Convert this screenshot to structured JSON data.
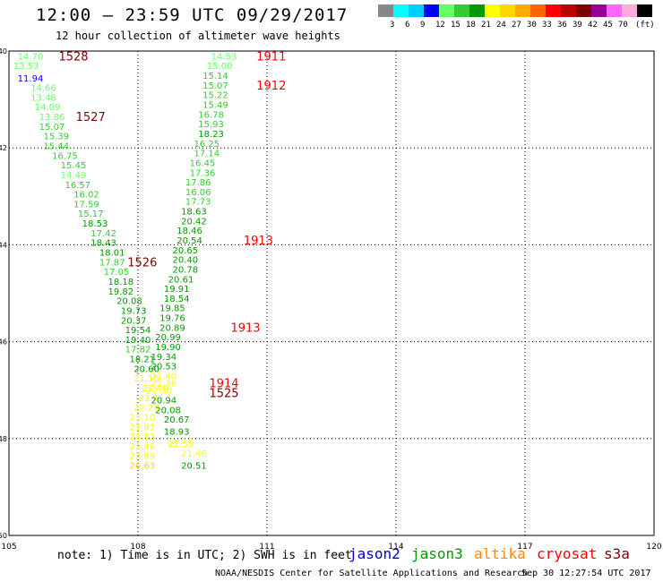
{
  "header": {
    "title": "12:00 — 23:59 UTC 09/29/2017",
    "subtitle": "12 hour collection of altimeter wave heights"
  },
  "legend": {
    "unit": "(ft)",
    "colors": [
      "#888888",
      "#00ffff",
      "#00ccff",
      "#0000ff",
      "#66ff66",
      "#33cc33",
      "#009900",
      "#ffff00",
      "#ffd700",
      "#ffaa00",
      "#ff6600",
      "#ff0000",
      "#bb0000",
      "#7f0000",
      "#990099",
      "#ff66ff",
      "#ffaadd",
      "#000000"
    ],
    "labels": [
      "3",
      "6",
      "9",
      "12",
      "15",
      "18",
      "21",
      "24",
      "27",
      "30",
      "33",
      "36",
      "39",
      "42",
      "45",
      "70"
    ]
  },
  "map": {
    "lon_ticks": [
      "105",
      "108",
      "111",
      "114",
      "117",
      "120"
    ],
    "lat_ticks": [
      "-40",
      "-42",
      "-44",
      "-46",
      "-48",
      "-50"
    ],
    "lon_range": [
      105,
      120
    ],
    "lat_range": [
      -50,
      -40
    ]
  },
  "observations": [
    {
      "v": "14.70",
      "c": "#66ff66",
      "lon": 105.5,
      "lat": -40.1
    },
    {
      "v": "13.53",
      "c": "#66ff66",
      "lon": 105.4,
      "lat": -40.3
    },
    {
      "v": "11.94",
      "c": "#0000ff",
      "lon": 105.5,
      "lat": -40.55
    },
    {
      "v": "14.66",
      "c": "#66ff66",
      "lon": 105.8,
      "lat": -40.75
    },
    {
      "v": "13.48",
      "c": "#66ff66",
      "lon": 105.8,
      "lat": -40.95
    },
    {
      "v": "14.09",
      "c": "#66ff66",
      "lon": 105.9,
      "lat": -41.15
    },
    {
      "v": "13.86",
      "c": "#66ff66",
      "lon": 106.0,
      "lat": -41.35
    },
    {
      "v": "15.07",
      "c": "#33cc33",
      "lon": 106.0,
      "lat": -41.55
    },
    {
      "v": "15.39",
      "c": "#33cc33",
      "lon": 106.1,
      "lat": -41.75
    },
    {
      "v": "15.44",
      "c": "#33cc33",
      "lon": 106.1,
      "lat": -41.95
    },
    {
      "v": "16.75",
      "c": "#33cc33",
      "lon": 106.3,
      "lat": -42.15
    },
    {
      "v": "15.45",
      "c": "#33cc33",
      "lon": 106.5,
      "lat": -42.35
    },
    {
      "v": "14.49",
      "c": "#66ff66",
      "lon": 106.5,
      "lat": -42.55
    },
    {
      "v": "16.57",
      "c": "#33cc33",
      "lon": 106.6,
      "lat": -42.75
    },
    {
      "v": "16.02",
      "c": "#33cc33",
      "lon": 106.8,
      "lat": -42.95
    },
    {
      "v": "17.59",
      "c": "#33cc33",
      "lon": 106.8,
      "lat": -43.15
    },
    {
      "v": "15.17",
      "c": "#33cc33",
      "lon": 106.9,
      "lat": -43.35
    },
    {
      "v": "18.53",
      "c": "#009900",
      "lon": 107.0,
      "lat": -43.55
    },
    {
      "v": "17.42",
      "c": "#33cc33",
      "lon": 107.2,
      "lat": -43.75
    },
    {
      "v": "18.43",
      "c": "#009900",
      "lon": 107.2,
      "lat": -43.95
    },
    {
      "v": "18.01",
      "c": "#009900",
      "lon": 107.4,
      "lat": -44.15
    },
    {
      "v": "17.87",
      "c": "#33cc33",
      "lon": 107.4,
      "lat": -44.35
    },
    {
      "v": "17.05",
      "c": "#33cc33",
      "lon": 107.5,
      "lat": -44.55
    },
    {
      "v": "18.18",
      "c": "#009900",
      "lon": 107.6,
      "lat": -44.75
    },
    {
      "v": "19.82",
      "c": "#009900",
      "lon": 107.6,
      "lat": -44.95
    },
    {
      "v": "20.08",
      "c": "#009900",
      "lon": 107.8,
      "lat": -45.15
    },
    {
      "v": "19.73",
      "c": "#009900",
      "lon": 107.9,
      "lat": -45.35
    },
    {
      "v": "20.37",
      "c": "#009900",
      "lon": 107.9,
      "lat": -45.55
    },
    {
      "v": "19.54",
      "c": "#009900",
      "lon": 108.0,
      "lat": -45.75
    },
    {
      "v": "19.40",
      "c": "#009900",
      "lon": 108.0,
      "lat": -45.95
    },
    {
      "v": "17.82",
      "c": "#33cc33",
      "lon": 108.0,
      "lat": -46.15
    },
    {
      "v": "18.21",
      "c": "#009900",
      "lon": 108.1,
      "lat": -46.35
    },
    {
      "v": "20.60",
      "c": "#009900",
      "lon": 108.2,
      "lat": -46.55
    },
    {
      "v": "21.15",
      "c": "#ffff00",
      "lon": 108.2,
      "lat": -46.75
    },
    {
      "v": "22.40",
      "c": "#ffff00",
      "lon": 108.4,
      "lat": -46.95
    },
    {
      "v": "23.01",
      "c": "#ffff00",
      "lon": 108.3,
      "lat": -47.15
    },
    {
      "v": "22.28",
      "c": "#ffff00",
      "lon": 108.2,
      "lat": -47.35
    },
    {
      "v": "23.10",
      "c": "#ffff00",
      "lon": 108.1,
      "lat": -47.55
    },
    {
      "v": "21.91",
      "c": "#ffff00",
      "lon": 108.1,
      "lat": -47.75
    },
    {
      "v": "21.82",
      "c": "#ffff00",
      "lon": 108.1,
      "lat": -47.95
    },
    {
      "v": "22.46",
      "c": "#ffff00",
      "lon": 108.1,
      "lat": -48.15
    },
    {
      "v": "23.89",
      "c": "#ffff00",
      "lon": 108.1,
      "lat": -48.35
    },
    {
      "v": "26.63",
      "c": "#ffd700",
      "lon": 108.1,
      "lat": -48.55
    },
    {
      "v": "14.53",
      "c": "#66ff66",
      "lon": 110.0,
      "lat": -40.1
    },
    {
      "v": "15.00",
      "c": "#66ff66",
      "lon": 109.9,
      "lat": -40.3
    },
    {
      "v": "15.14",
      "c": "#33cc33",
      "lon": 109.8,
      "lat": -40.5
    },
    {
      "v": "15.07",
      "c": "#33cc33",
      "lon": 109.8,
      "lat": -40.7
    },
    {
      "v": "15.22",
      "c": "#33cc33",
      "lon": 109.8,
      "lat": -40.9
    },
    {
      "v": "15.49",
      "c": "#33cc33",
      "lon": 109.8,
      "lat": -41.1
    },
    {
      "v": "16.78",
      "c": "#33cc33",
      "lon": 109.7,
      "lat": -41.3
    },
    {
      "v": "15.93",
      "c": "#33cc33",
      "lon": 109.7,
      "lat": -41.5
    },
    {
      "v": "18.23",
      "c": "#009900",
      "lon": 109.7,
      "lat": -41.7
    },
    {
      "v": "16.25",
      "c": "#33cc33",
      "lon": 109.6,
      "lat": -41.9
    },
    {
      "v": "17.14",
      "c": "#33cc33",
      "lon": 109.6,
      "lat": -42.1
    },
    {
      "v": "16.45",
      "c": "#33cc33",
      "lon": 109.5,
      "lat": -42.3
    },
    {
      "v": "17.36",
      "c": "#33cc33",
      "lon": 109.5,
      "lat": -42.5
    },
    {
      "v": "17.86",
      "c": "#33cc33",
      "lon": 109.4,
      "lat": -42.7
    },
    {
      "v": "16.06",
      "c": "#33cc33",
      "lon": 109.4,
      "lat": -42.9
    },
    {
      "v": "17.73",
      "c": "#33cc33",
      "lon": 109.4,
      "lat": -43.1
    },
    {
      "v": "18.63",
      "c": "#009900",
      "lon": 109.3,
      "lat": -43.3
    },
    {
      "v": "20.42",
      "c": "#009900",
      "lon": 109.3,
      "lat": -43.5
    },
    {
      "v": "18.46",
      "c": "#009900",
      "lon": 109.2,
      "lat": -43.7
    },
    {
      "v": "20.54",
      "c": "#009900",
      "lon": 109.2,
      "lat": -43.9
    },
    {
      "v": "20.65",
      "c": "#009900",
      "lon": 109.1,
      "lat": -44.1
    },
    {
      "v": "20.40",
      "c": "#009900",
      "lon": 109.1,
      "lat": -44.3
    },
    {
      "v": "20.78",
      "c": "#009900",
      "lon": 109.1,
      "lat": -44.5
    },
    {
      "v": "20.61",
      "c": "#009900",
      "lon": 109.0,
      "lat": -44.7
    },
    {
      "v": "19.91",
      "c": "#009900",
      "lon": 108.9,
      "lat": -44.9
    },
    {
      "v": "18.54",
      "c": "#009900",
      "lon": 108.9,
      "lat": -45.1
    },
    {
      "v": "19.85",
      "c": "#009900",
      "lon": 108.8,
      "lat": -45.3
    },
    {
      "v": "19.76",
      "c": "#009900",
      "lon": 108.8,
      "lat": -45.5
    },
    {
      "v": "20.89",
      "c": "#009900",
      "lon": 108.8,
      "lat": -45.7
    },
    {
      "v": "20.99",
      "c": "#009900",
      "lon": 108.7,
      "lat": -45.9
    },
    {
      "v": "19.90",
      "c": "#009900",
      "lon": 108.7,
      "lat": -46.1
    },
    {
      "v": "19.34",
      "c": "#009900",
      "lon": 108.6,
      "lat": -46.3
    },
    {
      "v": "20.53",
      "c": "#009900",
      "lon": 108.6,
      "lat": -46.5
    },
    {
      "v": "21.40",
      "c": "#ffff00",
      "lon": 108.6,
      "lat": -46.7
    },
    {
      "v": "22.36",
      "c": "#ffff00",
      "lon": 108.6,
      "lat": -46.85
    },
    {
      "v": "22.30",
      "c": "#ffff00",
      "lon": 108.5,
      "lat": -47.0
    },
    {
      "v": "20.94",
      "c": "#009900",
      "lon": 108.6,
      "lat": -47.2
    },
    {
      "v": "20.08",
      "c": "#009900",
      "lon": 108.7,
      "lat": -47.4
    },
    {
      "v": "20.67",
      "c": "#009900",
      "lon": 108.9,
      "lat": -47.6
    },
    {
      "v": "18.93",
      "c": "#009900",
      "lon": 108.9,
      "lat": -47.85
    },
    {
      "v": "22.55",
      "c": "#ffff00",
      "lon": 109.0,
      "lat": -48.1
    },
    {
      "v": "21.46",
      "c": "#ffff00",
      "lon": 109.3,
      "lat": -48.3
    },
    {
      "v": "20.51",
      "c": "#009900",
      "lon": 109.3,
      "lat": -48.55
    }
  ],
  "passes": [
    {
      "id": "1528",
      "c": "#7f0000",
      "lon": 106.5,
      "lat": -40.1
    },
    {
      "id": "1527",
      "c": "#7f0000",
      "lon": 106.9,
      "lat": -41.35
    },
    {
      "id": "1526",
      "c": "#7f0000",
      "lon": 108.1,
      "lat": -44.35
    },
    {
      "id": "1525",
      "c": "#7f0000",
      "lon": 110.0,
      "lat": -47.05
    },
    {
      "id": "1911",
      "c": "#ff0000",
      "lon": 111.1,
      "lat": -40.1
    },
    {
      "id": "1912",
      "c": "#ff0000",
      "lon": 111.1,
      "lat": -40.7
    },
    {
      "id": "1913",
      "c": "#ff0000",
      "lon": 110.8,
      "lat": -43.9
    },
    {
      "id": "1913",
      "c": "#ff0000",
      "lon": 110.5,
      "lat": -45.7
    },
    {
      "id": "1914",
      "c": "#ff0000",
      "lon": 110.0,
      "lat": -46.85
    }
  ],
  "footer": {
    "note": "note: 1) Time is in UTC; 2) SWH is in feet",
    "satellites": [
      {
        "name": "jason2",
        "color": "#0000cc"
      },
      {
        "name": "jason3",
        "color": "#009900"
      },
      {
        "name": "altika",
        "color": "#ff8800"
      },
      {
        "name": "cryosat",
        "color": "#ff0000"
      },
      {
        "name": "s3a",
        "color": "#7f0000"
      }
    ],
    "credit": "NOAA/NESDIS Center for Satellite Applications and Research",
    "timestamp": "Sep 30 12:27:54 UTC 2017"
  }
}
